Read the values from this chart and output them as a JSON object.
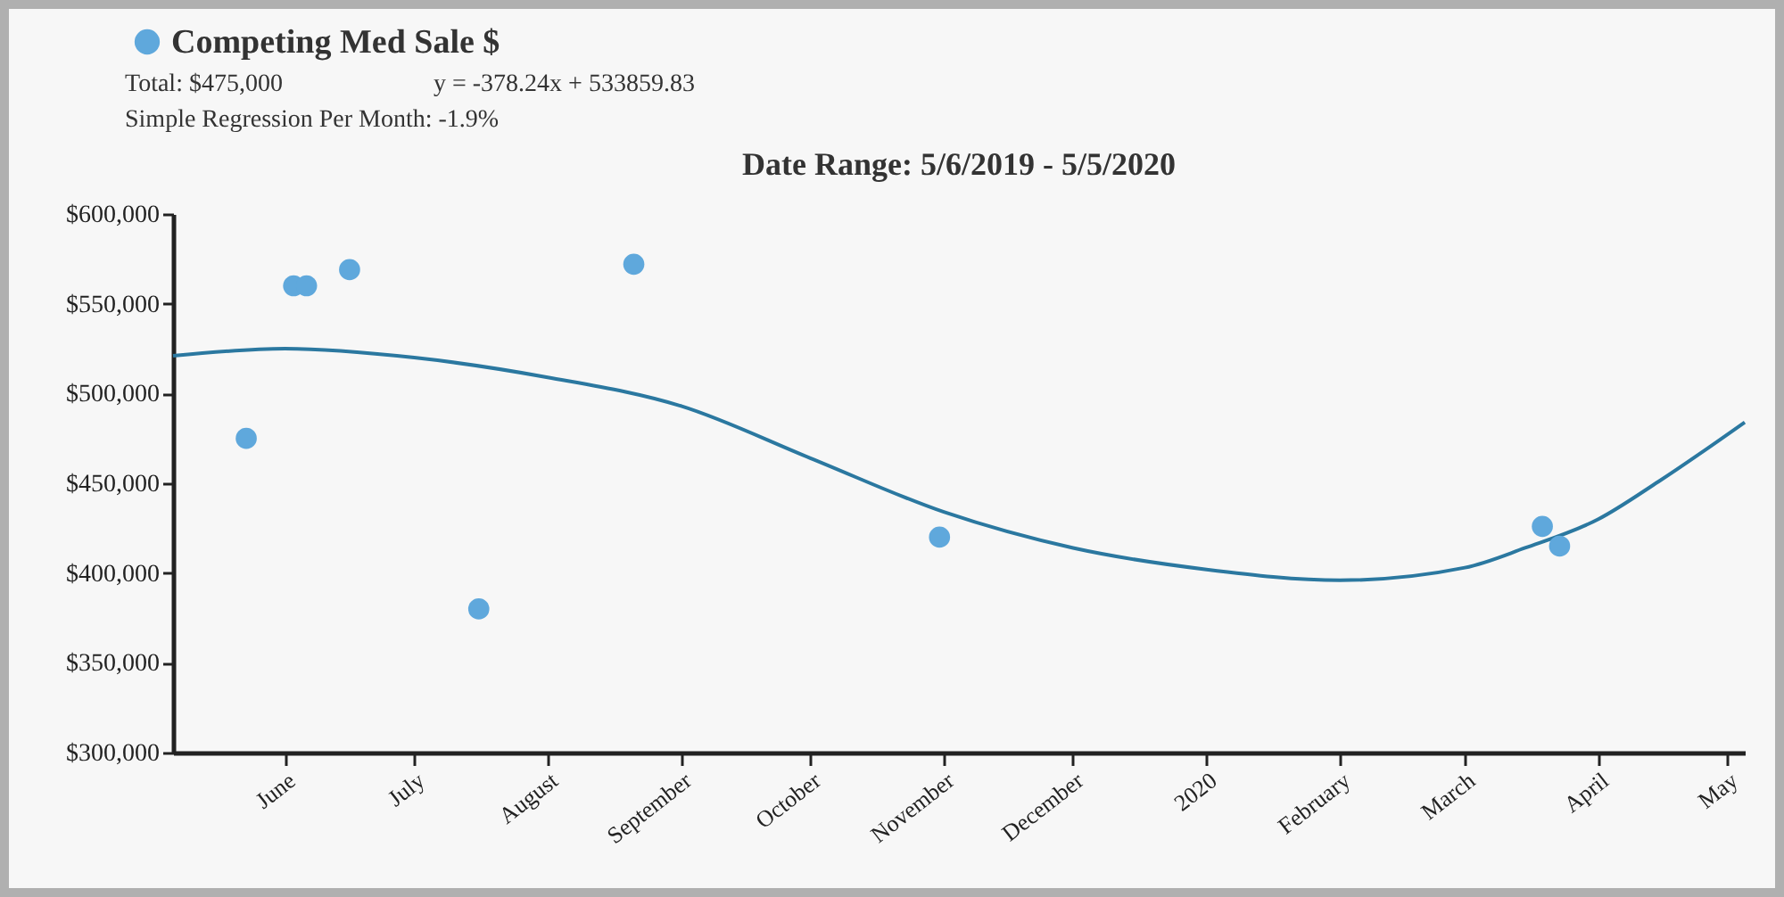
{
  "chart_data": {
    "type": "scatter",
    "title": "Date Range: 5/6/2019 - 5/5/2020",
    "annotations": [
      "Total: $475,000",
      "y = -378.24x + 533859.83",
      "Simple Regression Per Month: -1.9%"
    ],
    "x": [
      "2019-05-23",
      "2019-06-03",
      "2019-06-06",
      "2019-06-16",
      "2019-07-16",
      "2019-08-21",
      "2019-10-31",
      "2020-03-19",
      "2020-03-23"
    ],
    "series": [
      {
        "name": "Competing Med Sale $",
        "color": "#5fa8dc",
        "values": [
          475000,
          560000,
          560000,
          569000,
          380000,
          572000,
          420000,
          426000,
          415000
        ]
      },
      {
        "type": "line",
        "marker": "none",
        "color": "#2b78a0",
        "x": [
          "2019-05-06",
          "2019-06-01",
          "2019-07-01",
          "2019-08-01",
          "2019-09-01",
          "2019-10-01",
          "2019-11-01",
          "2019-12-01",
          "2020-01-01",
          "2020-02-01",
          "2020-03-01",
          "2020-03-15",
          "2020-04-01",
          "2020-04-15",
          "2020-05-05"
        ],
        "values": [
          521000,
          525000,
          520000,
          509000,
          493000,
          464000,
          434000,
          414000,
          402000,
          396000,
          403000,
          414000,
          430000,
          451000,
          484000
        ]
      }
    ],
    "xlim": [
      "2019-05-06",
      "2020-05-05"
    ],
    "xticks": [
      {
        "value": "2019-06-01",
        "label": "June"
      },
      {
        "value": "2019-07-01",
        "label": "July"
      },
      {
        "value": "2019-08-01",
        "label": "August"
      },
      {
        "value": "2019-09-01",
        "label": "September"
      },
      {
        "value": "2019-10-01",
        "label": "October"
      },
      {
        "value": "2019-11-01",
        "label": "November"
      },
      {
        "value": "2019-12-01",
        "label": "December"
      },
      {
        "value": "2020-01-01",
        "label": "2020"
      },
      {
        "value": "2020-02-01",
        "label": "February"
      },
      {
        "value": "2020-03-01",
        "label": "March"
      },
      {
        "value": "2020-04-01",
        "label": "April"
      },
      {
        "value": "2020-05-01",
        "label": "May"
      }
    ],
    "ylim": [
      300000,
      600000
    ],
    "yticks": [
      {
        "value": 300000,
        "label": "$300,000"
      },
      {
        "value": 350000,
        "label": "$350,000"
      },
      {
        "value": 400000,
        "label": "$400,000"
      },
      {
        "value": 450000,
        "label": "$450,000"
      },
      {
        "value": 500000,
        "label": "$500,000"
      },
      {
        "value": 550000,
        "label": "$550,000"
      },
      {
        "value": 600000,
        "label": "$600,000"
      }
    ],
    "grid": false,
    "legend": "top left",
    "marker": "circle",
    "line_style": "solid"
  }
}
